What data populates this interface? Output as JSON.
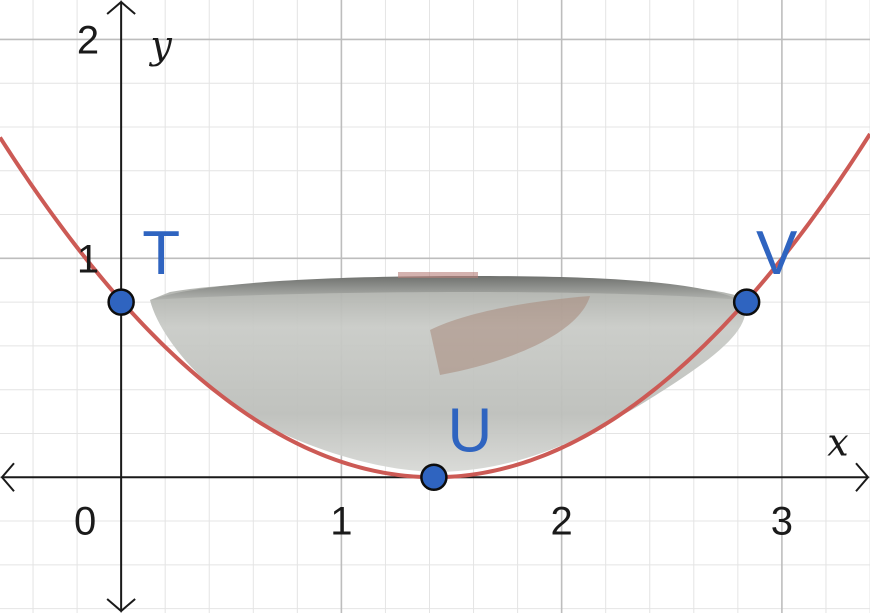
{
  "chart_data": {
    "type": "line",
    "title": "",
    "xlabel": "x",
    "ylabel": "y",
    "xlim": [
      -0.55,
      3.4
    ],
    "ylim": [
      -0.62,
      2.18
    ],
    "x_ticks": [
      "0",
      "1",
      "2",
      "3"
    ],
    "y_ticks": [
      "1",
      "2"
    ],
    "grid": true,
    "curve": {
      "kind": "parabola",
      "vertex": [
        1.42,
        0.0
      ],
      "a": 0.4,
      "x_range": [
        -0.55,
        3.4
      ],
      "color": "#cc5a55"
    },
    "points": [
      {
        "label": "T",
        "x": 0.0,
        "y": 0.8
      },
      {
        "label": "U",
        "x": 1.42,
        "y": 0.0
      },
      {
        "label": "V",
        "x": 2.84,
        "y": 0.8
      }
    ],
    "point_color": "#2f64c0"
  }
}
